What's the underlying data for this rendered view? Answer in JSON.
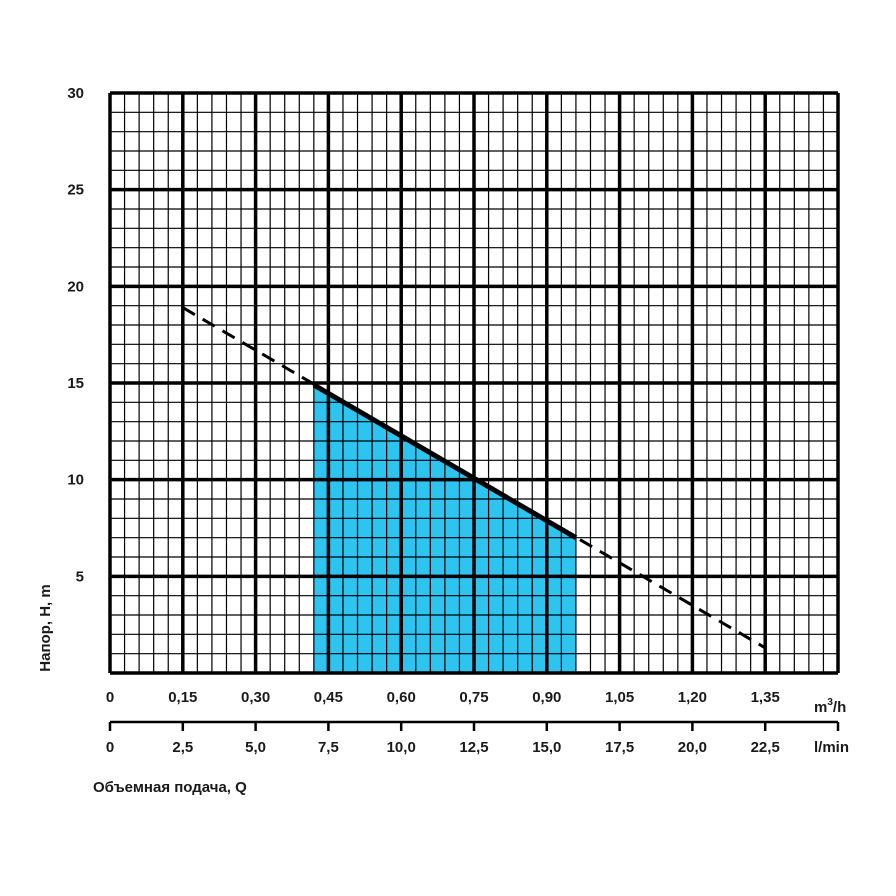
{
  "chart_data": {
    "type": "line",
    "ylabel": "Напор, H, m",
    "xlabel": "Объемная подача, Q",
    "x_unit_top": "m",
    "x_unit_top_sup": "3",
    "x_unit_top_suffix": "/h",
    "x_unit_bottom": "l/min",
    "ylim": [
      0,
      30
    ],
    "xlim": [
      0,
      1.5
    ],
    "y_ticks": [
      "5",
      "10",
      "15",
      "20",
      "25",
      "30"
    ],
    "x_ticks_top": [
      "0",
      "0,15",
      "0,30",
      "0,45",
      "0,60",
      "0,75",
      "0,90",
      "1,05",
      "1,20",
      "1,35"
    ],
    "x_ticks_bottom": [
      "0",
      "2,5",
      "5,0",
      "7,5",
      "10,0",
      "12,5",
      "15,0",
      "17,5",
      "20,0",
      "22,5"
    ],
    "grid": true,
    "series": [
      {
        "style": "dashed",
        "color": "#000000",
        "x": [
          0.15,
          1.35
        ],
        "y": [
          18.9,
          1.3
        ]
      },
      {
        "style": "solid",
        "color": "#000000",
        "x": [
          0.42,
          0.96
        ],
        "y": [
          14.9,
          7.0
        ]
      }
    ],
    "highlight_region": {
      "color": "#2ec4f0",
      "x": [
        0.42,
        0.96
      ]
    }
  }
}
